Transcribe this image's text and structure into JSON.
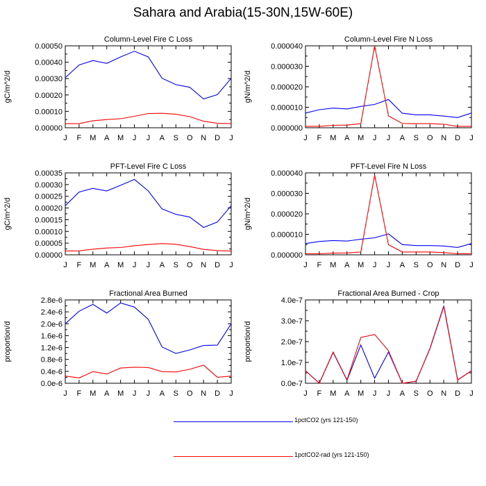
{
  "title": "Sahara and Arabia(15-30N,15W-60E)",
  "colors": {
    "series1": "#0000ff",
    "series2": "#ff0000"
  },
  "legend": [
    {
      "label": "1pctCO2 (yrs 121-150)",
      "color": "#0000ff"
    },
    {
      "label": "1pctCO2-rad (yrs 121-150)",
      "color": "#ff0000"
    }
  ],
  "chart_data": [
    {
      "type": "line",
      "title": "Column-Level Fire C Loss",
      "ylabel": "gC/m^2/d",
      "categories": [
        "J",
        "F",
        "M",
        "A",
        "M",
        "J",
        "J",
        "A",
        "S",
        "O",
        "N",
        "D",
        "J"
      ],
      "ylim": [
        0,
        0.0005
      ],
      "yticks": [
        0,
        0.0001,
        0.0002,
        0.0003,
        0.0004,
        0.0005
      ],
      "ytick_labels": [
        "0.00000",
        "0.00010",
        "0.00020",
        "0.00030",
        "0.00040",
        "0.00050"
      ],
      "series": [
        {
          "name": "1pctCO2 (yrs 121-150)",
          "color": "#0000ff",
          "values": [
            0.000305,
            0.000383,
            0.00041,
            0.000393,
            0.000432,
            0.000467,
            0.000432,
            0.000302,
            0.000263,
            0.000247,
            0.000176,
            0.000202,
            0.000302
          ]
        },
        {
          "name": "1pctCO2-rad (yrs 121-150)",
          "color": "#ff0000",
          "values": [
            2.5e-05,
            2.5e-05,
            4.3e-05,
            5e-05,
            5.5e-05,
            7e-05,
            8.7e-05,
            8.8e-05,
            8.2e-05,
            6.8e-05,
            4e-05,
            2.7e-05,
            2.5e-05
          ]
        }
      ]
    },
    {
      "type": "line",
      "title": "Column-Level Fire N Loss",
      "ylabel": "gN/m^2/d",
      "categories": [
        "J",
        "F",
        "M",
        "A",
        "M",
        "J",
        "J",
        "A",
        "S",
        "O",
        "N",
        "D",
        "J"
      ],
      "ylim": [
        0,
        4e-05
      ],
      "yticks": [
        0,
        1e-05,
        2e-05,
        3e-05,
        4e-05
      ],
      "ytick_labels": [
        "0.000000",
        "0.000010",
        "0.000020",
        "0.000030",
        "0.000040"
      ],
      "series": [
        {
          "name": "1pctCO2 (yrs 121-150)",
          "color": "#0000ff",
          "values": [
            7.2e-06,
            8.8e-06,
            9.6e-06,
            9.2e-06,
            1.04e-05,
            1.14e-05,
            1.38e-05,
            7.1e-06,
            6.3e-06,
            6.3e-06,
            5.7e-06,
            5e-06,
            7.2e-06
          ]
        },
        {
          "name": "1pctCO2-rad (yrs 121-150)",
          "color": "#ff0000",
          "values": [
            7e-07,
            7e-07,
            1.2e-06,
            1.3e-06,
            2e-06,
            4e-05,
            5.8e-06,
            2.1e-06,
            2e-06,
            2e-06,
            1.7e-06,
            7e-07,
            7e-07
          ]
        }
      ]
    },
    {
      "type": "line",
      "title": "PFT-Level Fire C Loss",
      "ylabel": "gC/m^2/d",
      "categories": [
        "J",
        "F",
        "M",
        "A",
        "M",
        "J",
        "J",
        "A",
        "S",
        "O",
        "N",
        "D",
        "J"
      ],
      "ylim": [
        0,
        0.00035
      ],
      "yticks": [
        0,
        5e-05,
        0.0001,
        0.00015,
        0.0002,
        0.00025,
        0.0003,
        0.00035
      ],
      "ytick_labels": [
        "0.00000",
        "0.00005",
        "0.00010",
        "0.00015",
        "0.00020",
        "0.00025",
        "0.00030",
        "0.00035"
      ],
      "series": [
        {
          "name": "1pctCO2 (yrs 121-150)",
          "color": "#0000ff",
          "values": [
            0.00021,
            0.000268,
            0.000284,
            0.000273,
            0.000297,
            0.000322,
            0.000273,
            0.000196,
            0.000173,
            0.000161,
            0.000117,
            0.00014,
            0.00021
          ]
        },
        {
          "name": "1pctCO2-rad (yrs 121-150)",
          "color": "#ff0000",
          "values": [
            1.6e-05,
            1.7e-05,
            2.4e-05,
            2.9e-05,
            3.1e-05,
            3.9e-05,
            4.4e-05,
            4.8e-05,
            4.5e-05,
            3.5e-05,
            2.3e-05,
            1.8e-05,
            1.6e-05
          ]
        }
      ]
    },
    {
      "type": "line",
      "title": "PFT-Level Fire N Loss",
      "ylabel": "gN/m^2/d",
      "categories": [
        "J",
        "F",
        "M",
        "A",
        "M",
        "J",
        "J",
        "A",
        "S",
        "O",
        "N",
        "D",
        "J"
      ],
      "ylim": [
        0,
        4e-05
      ],
      "yticks": [
        0,
        1e-05,
        2e-05,
        3e-05,
        4e-05
      ],
      "ytick_labels": [
        "0.000000",
        "0.000010",
        "0.000020",
        "0.000030",
        "0.000040"
      ],
      "series": [
        {
          "name": "1pctCO2 (yrs 121-150)",
          "color": "#0000ff",
          "values": [
            5.5e-06,
            6.5e-06,
            7e-06,
            6.7e-06,
            7.6e-06,
            8.3e-06,
            1.02e-05,
            5e-06,
            4.5e-06,
            4.5e-06,
            4.3e-06,
            3.6e-06,
            5.5e-06
          ]
        },
        {
          "name": "1pctCO2-rad (yrs 121-150)",
          "color": "#ff0000",
          "values": [
            5e-07,
            5e-07,
            8e-07,
            9e-07,
            1.4e-06,
            3.9e-05,
            4.9e-06,
            1.4e-06,
            1.4e-06,
            1.4e-06,
            1.1e-06,
            5e-07,
            5e-07
          ]
        }
      ]
    },
    {
      "type": "line",
      "title": "Fractional Area Burned",
      "ylabel": "proportion/d",
      "categories": [
        "J",
        "F",
        "M",
        "A",
        "M",
        "J",
        "J",
        "A",
        "S",
        "O",
        "N",
        "D",
        "J"
      ],
      "ylim": [
        0,
        2.8e-06
      ],
      "yticks": [
        0,
        4e-07,
        8e-07,
        1.2e-06,
        1.6e-06,
        2e-06,
        2.4e-06,
        2.8e-06
      ],
      "ytick_labels": [
        "0.0e-6",
        "0.4e-6",
        "0.8e-6",
        "1.2e-6",
        "1.6e-6",
        "2.0e-6",
        "2.4e-6",
        "2.8e-6"
      ],
      "series": [
        {
          "name": "1pctCO2 (yrs 121-150)",
          "color": "#0000ff",
          "values": [
            2e-06,
            2.42e-06,
            2.65e-06,
            2.36e-06,
            2.7e-06,
            2.56e-06,
            2.15e-06,
            1.22e-06,
            1e-06,
            1.12e-06,
            1.27e-06,
            1.28e-06,
            2e-06
          ]
        },
        {
          "name": "1pctCO2-rad (yrs 121-150)",
          "color": "#ff0000",
          "values": [
            2.4e-07,
            1.8e-07,
            3.9e-07,
            3.1e-07,
            5.1e-07,
            5.4e-07,
            5.3e-07,
            3.9e-07,
            3.8e-07,
            4.7e-07,
            6.1e-07,
            2e-07,
            2.4e-07
          ]
        }
      ]
    },
    {
      "type": "line",
      "title": "Fractional Area Burned - Crop",
      "ylabel": "proportion/d",
      "categories": [
        "J",
        "F",
        "M",
        "A",
        "M",
        "J",
        "J",
        "A",
        "S",
        "O",
        "N",
        "D",
        "J"
      ],
      "ylim": [
        0,
        4e-07
      ],
      "yticks": [
        0,
        1e-07,
        2e-07,
        3e-07,
        4e-07
      ],
      "ytick_labels": [
        "0.0e-7",
        "1.0e-7",
        "2.0e-7",
        "3.0e-7",
        "4.0e-7"
      ],
      "series": [
        {
          "name": "1pctCO2 (yrs 121-150)",
          "color": "#0000ff",
          "values": [
            6e-08,
            0.0,
            1.48e-07,
            1.4e-08,
            1.84e-07,
            2.4e-08,
            1.5e-07,
            0.0,
            9e-09,
            1.68e-07,
            3.72e-07,
            1.6e-08,
            6e-08
          ]
        },
        {
          "name": "1pctCO2-rad (yrs 121-150)",
          "color": "#ff0000",
          "values": [
            6e-08,
            0.0,
            1.5e-07,
            1.6e-08,
            2.2e-07,
            2.34e-07,
            1.56e-07,
            0.0,
            1e-08,
            1.66e-07,
            3.68e-07,
            1.5e-08,
            6e-08
          ]
        }
      ]
    }
  ]
}
